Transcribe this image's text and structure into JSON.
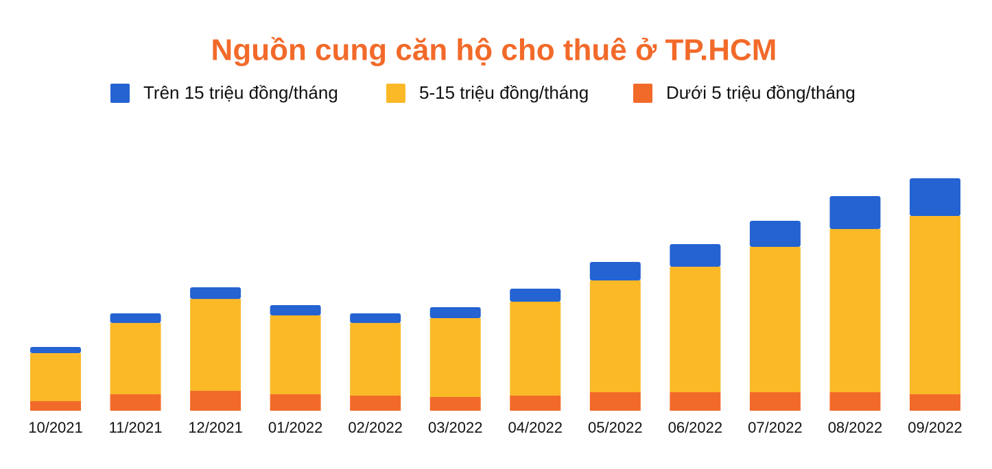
{
  "chart_data": {
    "type": "stacked_bar",
    "title": "Nguồn cung căn hộ cho thuê ở TP.HCM",
    "categories": [
      "10/2021",
      "11/2021",
      "12/2021",
      "01/2022",
      "02/2022",
      "03/2022",
      "04/2022",
      "05/2022",
      "06/2022",
      "07/2022",
      "08/2022",
      "09/2022"
    ],
    "series": [
      {
        "name": "Trên 15 triệu đồng/tháng",
        "color": "#2463d1",
        "values": [
          9,
          14,
          17,
          15,
          14,
          16,
          19,
          27,
          33,
          38,
          48,
          55
        ]
      },
      {
        "name": "5-15 triệu đồng/tháng",
        "color": "#fbb928",
        "values": [
          70,
          104,
          134,
          115,
          106,
          115,
          137,
          163,
          183,
          212,
          238,
          260
        ]
      },
      {
        "name": "Dưới 5 triệu đồng/tháng",
        "color": "#f26a2a",
        "values": [
          14,
          24,
          29,
          24,
          22,
          20,
          22,
          27,
          27,
          27,
          27,
          24
        ]
      }
    ]
  }
}
